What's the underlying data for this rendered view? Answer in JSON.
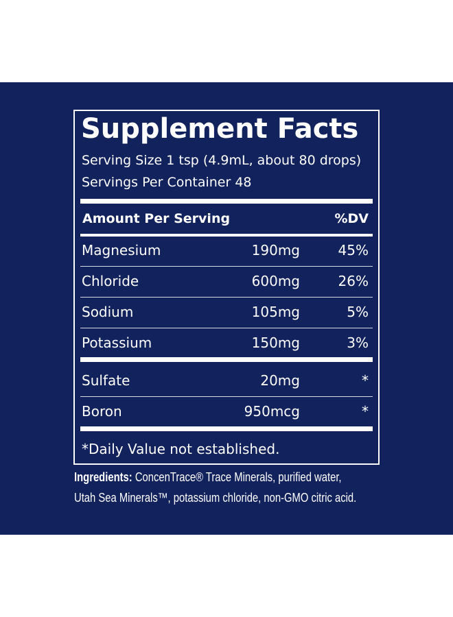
{
  "title": "Supplement Facts",
  "serving_size": "Serving Size 1 tsp (4.9mL, about 80 drops)",
  "servings_per_container": "Servings Per Container 48",
  "header": {
    "amount": "Amount Per Serving",
    "dv": "%DV"
  },
  "rows": [
    [
      "Magnesium",
      "190mg",
      "45%"
    ],
    [
      "Chloride",
      "600mg",
      "26%"
    ],
    [
      "Sodium",
      "105mg",
      "5%"
    ],
    [
      "Potassium",
      "150mg",
      "3%"
    ],
    [
      "Sulfate",
      "20mg",
      "*"
    ],
    [
      "Boron",
      "950mcg",
      "*"
    ]
  ],
  "footnote": "*Daily Value not established.",
  "ingredients": {
    "label": "Ingredients:",
    "lines": [
      "ConcenTrace® Trace Minerals, purified water,",
      "Utah Sea Minerals™, potassium chloride, non-GMO citric acid."
    ]
  }
}
